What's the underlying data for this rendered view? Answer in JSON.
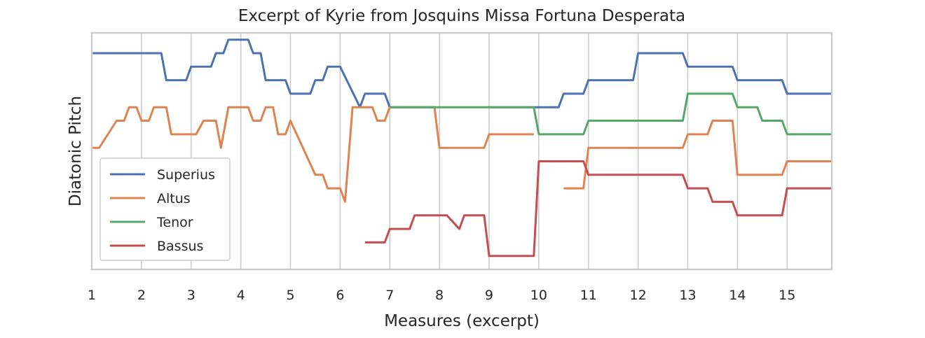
{
  "chart_data": {
    "type": "line",
    "title": "Excerpt of Kyrie from Josquins Missa Fortuna Desperata",
    "xlabel": "Measures (excerpt)",
    "ylabel": "Diatonic Pitch",
    "xlim": [
      1,
      15.9
    ],
    "ylim": [
      0,
      17.5
    ],
    "xticks": [
      1,
      2,
      3,
      4,
      5,
      6,
      7,
      8,
      9,
      10,
      11,
      12,
      13,
      14,
      15
    ],
    "grid": true,
    "legend_position": "lower-left",
    "series": [
      {
        "name": "Superius",
        "color": "#4c72b0",
        "segments": [
          [
            [
              1,
              16
            ],
            [
              2.4,
              16
            ],
            [
              2.5,
              14
            ],
            [
              2.9,
              14
            ],
            [
              3,
              15
            ],
            [
              3.4,
              15
            ],
            [
              3.5,
              16
            ],
            [
              3.65,
              16
            ],
            [
              3.75,
              17
            ],
            [
              4.15,
              17
            ],
            [
              4.25,
              16
            ],
            [
              4.4,
              16
            ],
            [
              4.5,
              14
            ],
            [
              4.9,
              14
            ],
            [
              5,
              13
            ],
            [
              5.4,
              13
            ],
            [
              5.5,
              14
            ],
            [
              5.65,
              14
            ],
            [
              5.75,
              15
            ],
            [
              6,
              15
            ],
            [
              6.4,
              12
            ],
            [
              6.5,
              13
            ],
            [
              6.9,
              13
            ],
            [
              7,
              12
            ],
            [
              7.9,
              12
            ]
          ],
          [
            [
              9,
              12
            ],
            [
              10.4,
              12
            ],
            [
              10.5,
              13
            ],
            [
              10.9,
              13
            ],
            [
              11,
              14
            ],
            [
              11.9,
              14
            ],
            [
              12,
              16
            ],
            [
              12.9,
              16
            ],
            [
              13,
              15
            ],
            [
              13.9,
              15
            ],
            [
              14,
              14
            ],
            [
              14.9,
              14
            ],
            [
              15,
              13
            ],
            [
              15.9,
              13
            ]
          ]
        ]
      },
      {
        "name": "Altus",
        "color": "#dd8452",
        "segments": [
          [
            [
              1,
              9
            ],
            [
              1.15,
              9
            ],
            [
              1.5,
              11
            ],
            [
              1.65,
              11
            ],
            [
              1.75,
              12
            ],
            [
              1.9,
              12
            ],
            [
              2,
              11
            ],
            [
              2.15,
              11
            ],
            [
              2.25,
              12
            ],
            [
              2.5,
              12
            ],
            [
              2.6,
              10
            ],
            [
              3.1,
              10
            ],
            [
              3.25,
              11
            ],
            [
              3.5,
              11
            ],
            [
              3.6,
              9
            ],
            [
              3.75,
              12
            ],
            [
              4.15,
              12
            ],
            [
              4.25,
              11
            ],
            [
              4.4,
              11
            ],
            [
              4.5,
              12
            ],
            [
              4.65,
              12
            ],
            [
              4.75,
              10
            ],
            [
              4.9,
              10
            ],
            [
              5,
              11
            ],
            [
              5.5,
              7
            ],
            [
              5.65,
              7
            ],
            [
              5.75,
              6
            ],
            [
              6,
              6
            ],
            [
              6.1,
              5
            ],
            [
              6.25,
              12
            ],
            [
              6.65,
              12
            ],
            [
              6.75,
              11
            ],
            [
              6.9,
              11
            ],
            [
              7,
              12
            ],
            [
              7.9,
              12
            ],
            [
              8,
              9
            ],
            [
              8.9,
              9
            ],
            [
              9,
              10
            ],
            [
              9.9,
              10
            ]
          ],
          [
            [
              10.5,
              6
            ],
            [
              10.9,
              6
            ],
            [
              11,
              9
            ],
            [
              12.9,
              9
            ],
            [
              13,
              10
            ],
            [
              13.4,
              10
            ],
            [
              13.5,
              11
            ],
            [
              13.9,
              11
            ],
            [
              14,
              7
            ],
            [
              14.9,
              7
            ],
            [
              15,
              8
            ],
            [
              15.9,
              8
            ]
          ]
        ]
      },
      {
        "name": "Tenor",
        "color": "#55a868",
        "segments": [
          [
            [
              7,
              12
            ],
            [
              9.9,
              12
            ],
            [
              10,
              10
            ],
            [
              10.9,
              10
            ],
            [
              11,
              11
            ],
            [
              12.9,
              11
            ],
            [
              13,
              13
            ],
            [
              13.9,
              13
            ],
            [
              14,
              12
            ],
            [
              14.4,
              12
            ],
            [
              14.5,
              11
            ],
            [
              14.9,
              11
            ],
            [
              15,
              10
            ],
            [
              15.9,
              10
            ]
          ]
        ]
      },
      {
        "name": "Bassus",
        "color": "#c44e52",
        "segments": [
          [
            [
              6.5,
              2
            ],
            [
              6.9,
              2
            ],
            [
              7,
              3
            ],
            [
              7.4,
              3
            ],
            [
              7.5,
              4
            ],
            [
              8.15,
              4
            ],
            [
              8.4,
              3
            ],
            [
              8.5,
              4
            ],
            [
              8.9,
              4
            ],
            [
              9,
              1
            ],
            [
              9.9,
              1
            ],
            [
              10,
              8
            ],
            [
              10.9,
              8
            ],
            [
              11,
              7
            ],
            [
              12.9,
              7
            ],
            [
              13,
              6
            ],
            [
              13.4,
              6
            ],
            [
              13.5,
              5
            ],
            [
              13.9,
              5
            ],
            [
              14,
              4
            ],
            [
              14.9,
              4
            ],
            [
              15,
              6
            ],
            [
              15.9,
              6
            ]
          ]
        ]
      }
    ]
  }
}
